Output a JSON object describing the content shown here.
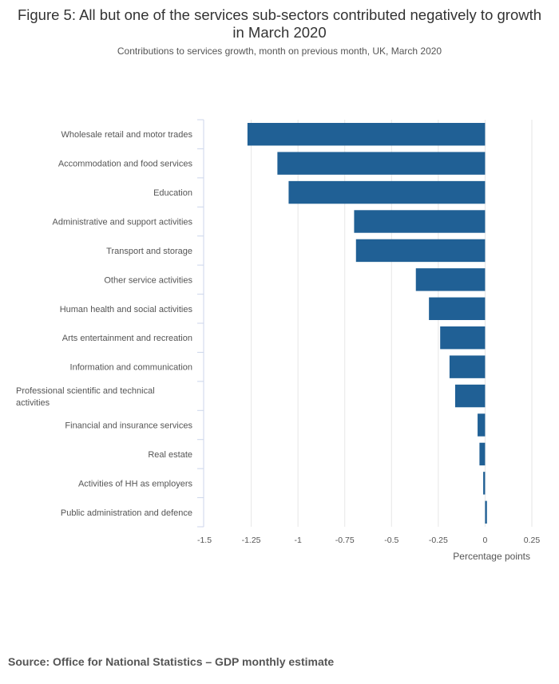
{
  "chart_data": {
    "type": "bar",
    "orientation": "horizontal",
    "title": "Figure 5: All but one of the services sub-sectors contributed negatively to growth in March 2020",
    "subtitle": "Contributions to services growth, month on previous month, UK, March 2020",
    "xlabel": "Percentage points",
    "ylabel": "",
    "xlim": [
      -1.5,
      0.25
    ],
    "ticks": [
      "-1.5",
      "-1.25",
      "-1",
      "-0.75",
      "-0.5",
      "-0.25",
      "0",
      "0.25"
    ],
    "tick_values": [
      -1.5,
      -1.25,
      -1,
      -0.75,
      -0.5,
      -0.25,
      0,
      0.25
    ],
    "grid": true,
    "categories": [
      "Wholesale retail and motor trades",
      "Accommodation and food services",
      "Education",
      "Administrative and support activities",
      "Transport and storage",
      "Other service activities",
      "Human health and social activities",
      "Arts entertainment and recreation",
      "Information and communication",
      "Professional scientific and technical activities",
      "Financial and insurance services",
      "Real estate",
      "Activities of HH as employers",
      "Public administration and defence"
    ],
    "values": [
      -1.27,
      -1.11,
      -1.05,
      -0.7,
      -0.69,
      -0.37,
      -0.3,
      -0.24,
      -0.19,
      -0.16,
      -0.04,
      -0.03,
      -0.01,
      0.01
    ],
    "bar_color": "#206095"
  },
  "source": "Source: Office for National Statistics – GDP monthly estimate"
}
